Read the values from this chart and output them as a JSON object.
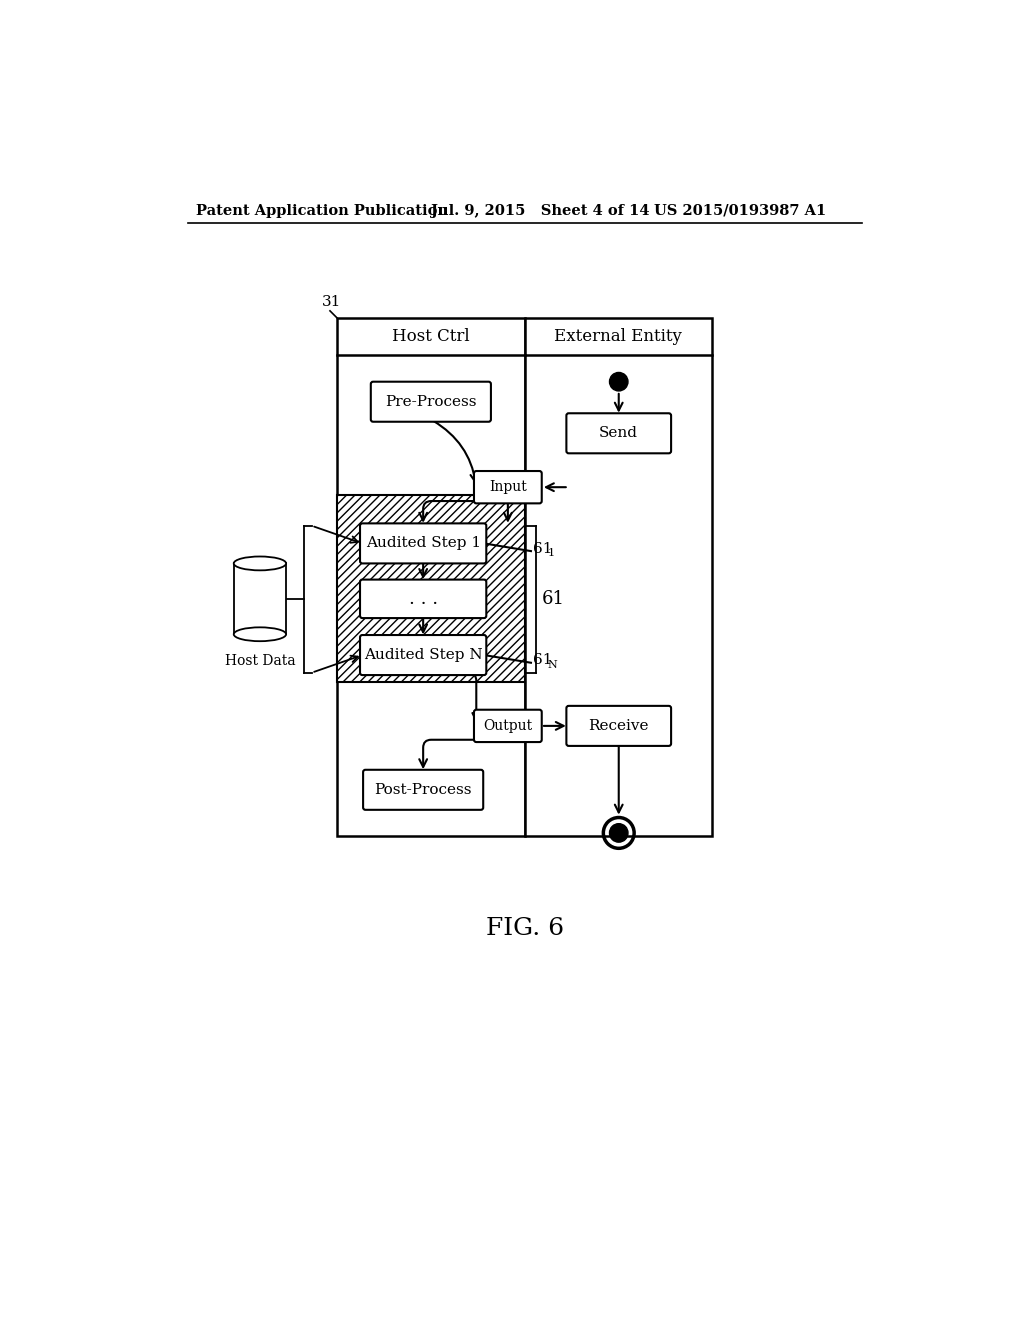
{
  "bg_color": "#ffffff",
  "header_left": "Patent Application Publication",
  "header_mid": "Jul. 9, 2015   Sheet 4 of 14",
  "header_right": "US 2015/0193987 A1",
  "fig_label": "FIG. 6",
  "diagram_ref": "31",
  "host_ctrl": "Host Ctrl",
  "ext_entity": "External Entity",
  "label_preprocess": "Pre-Process",
  "label_input": "Input",
  "label_send": "Send",
  "label_step1": "Audited Step 1",
  "label_dots": ". . .",
  "label_stepN": "Audited Step N",
  "label_output": "Output",
  "label_receive": "Receive",
  "label_postprocess": "Post-Process",
  "label_hostdata": "Host Data",
  "label_61": "61",
  "label_61_1": "61",
  "label_61_1_sub": "1",
  "label_61_N": "61",
  "label_61_N_sub": "N"
}
